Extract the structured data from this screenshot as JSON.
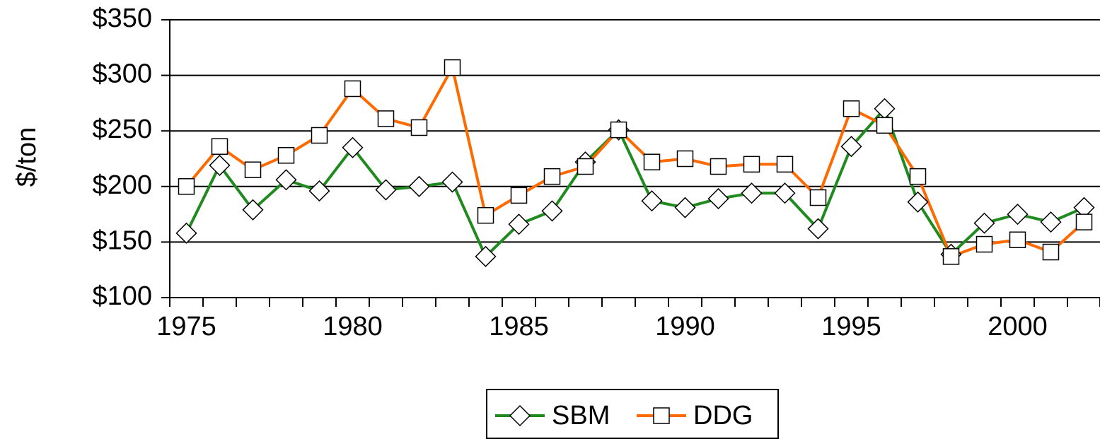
{
  "chart_data": {
    "type": "line",
    "ylabel": "$/ton",
    "categories": [
      "1975",
      null,
      null,
      null,
      null,
      "1980",
      null,
      null,
      null,
      null,
      "1985",
      null,
      null,
      null,
      null,
      "1990",
      null,
      null,
      null,
      null,
      "1995",
      null,
      null,
      null,
      null,
      "2000",
      null,
      null
    ],
    "series": [
      {
        "name": "SBM",
        "color": "#1f8b1f",
        "marker": "diamond",
        "values": [
          158,
          219,
          179,
          206,
          196,
          235,
          197,
          200,
          204,
          137,
          166,
          178,
          222,
          251,
          187,
          181,
          189,
          194,
          194,
          162,
          236,
          270,
          186,
          139,
          167,
          175,
          168,
          181
        ]
      },
      {
        "name": "DDG",
        "color": "#ff6a00",
        "marker": "square",
        "values": [
          200,
          236,
          215,
          228,
          246,
          288,
          261,
          253,
          307,
          174,
          192,
          209,
          218,
          251,
          222,
          225,
          218,
          220,
          220,
          190,
          270,
          255,
          209,
          137,
          148,
          152,
          141,
          168
        ]
      }
    ],
    "ylim": [
      100,
      350
    ],
    "yticks": [
      {
        "value": 100,
        "label": "$100"
      },
      {
        "value": 150,
        "label": "$150"
      },
      {
        "value": 200,
        "label": "$200"
      },
      {
        "value": 250,
        "label": "$250"
      },
      {
        "value": 300,
        "label": "$300"
      },
      {
        "value": 350,
        "label": "$350"
      }
    ],
    "grid": true,
    "legend": "bottom"
  }
}
